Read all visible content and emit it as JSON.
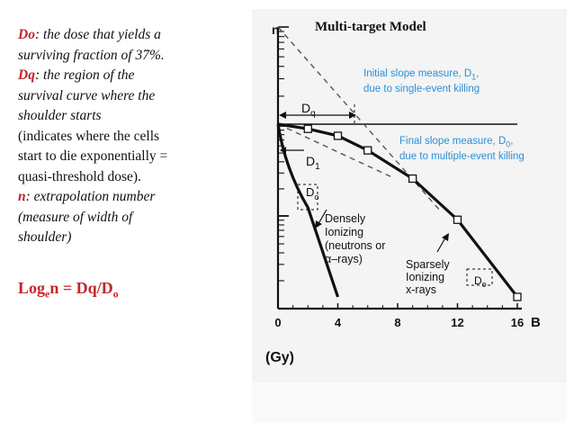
{
  "left_text": {
    "l1_term": "Do",
    "l1_rest": ": the dose that yields a",
    "l2": "surviving fraction of 37%.",
    "l3_term": "Dq",
    "l3_rest": ": the region of the",
    "l4": "survival curve where the",
    "l5": "shoulder starts",
    "l6": "(indicates where the cells",
    "l7": "start to die exponentially =",
    "l8": "quasi-threshold dose).",
    "l9_term": "n",
    "l9_rest": ": extrapolation number",
    "l10": "(measure of width of",
    "l11": "shoulder)"
  },
  "formula": {
    "log": "Log",
    "base": "e",
    "expr": "n = Dq/D",
    "sub": "o"
  },
  "chart_data": {
    "type": "line",
    "title": "Multi-target Model",
    "xlabel": "(Gy)",
    "x_axis_end_label": "B",
    "ylabel": "n",
    "xlim": [
      0,
      16
    ],
    "x_ticks": [
      "0",
      "4",
      "8",
      "12",
      "16"
    ],
    "y_scale": "log",
    "series": [
      {
        "name": "Densely ionizing (neutrons or α–rays)",
        "label_lines": [
          "Densely",
          "Ionizing",
          "(neutrons or",
          "α–rays)"
        ],
        "x": [
          0,
          1,
          2,
          3,
          4
        ],
        "y_rel": [
          1.0,
          0.62,
          0.4,
          0.24,
          0.15
        ]
      },
      {
        "name": "Sparsely ionizing x-rays",
        "label_lines": [
          "Sparsely",
          "Ionizing",
          "x-rays"
        ],
        "x": [
          0,
          2,
          4,
          6,
          9,
          12,
          16
        ],
        "y_rel": [
          1.0,
          0.95,
          0.88,
          0.75,
          0.55,
          0.35,
          0.15
        ]
      }
    ],
    "annotations": {
      "dq": "D",
      "dq_sub": "q",
      "d1": "D",
      "d1_sub": "1",
      "d0": "D",
      "d0_sub": "o",
      "initial_slope": [
        "Initial slope measure, D",
        "1",
        ",",
        "due to single-event killing"
      ],
      "final_slope": [
        "Final slope measure, D",
        "0",
        ",",
        "due to multiple-event killing"
      ]
    },
    "colors": {
      "annotation": "#2a8fd8",
      "highlight": "#c0262c"
    }
  }
}
